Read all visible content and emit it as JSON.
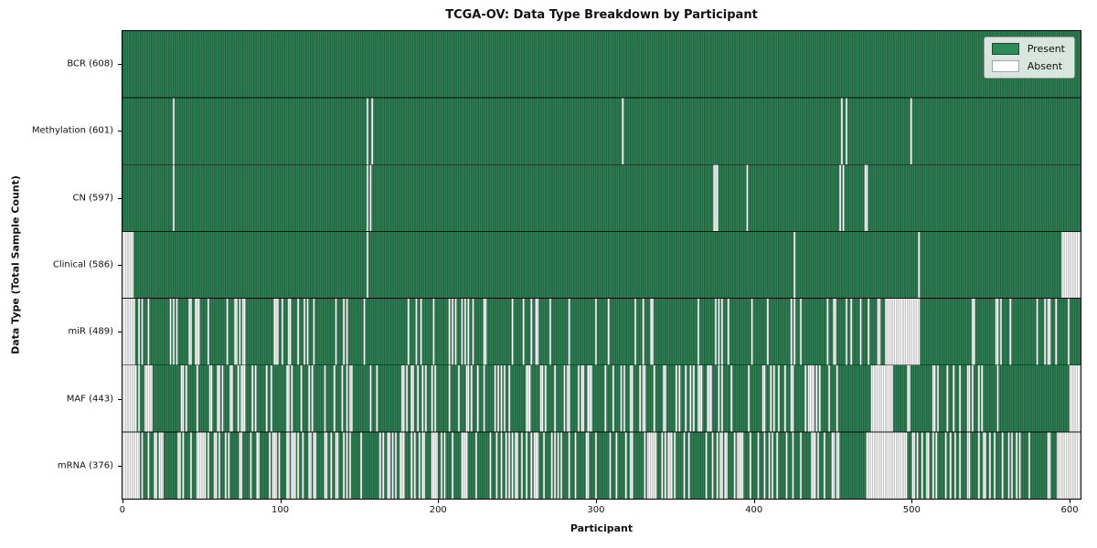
{
  "chart_data": {
    "type": "heatmap",
    "title": "TCGA-OV: Data Type Breakdown by Participant",
    "xlabel": "Participant",
    "ylabel": "Data Type (Total Sample Count)",
    "x_ticks": [
      0,
      100,
      200,
      300,
      400,
      500,
      600
    ],
    "x_range": [
      0,
      608
    ],
    "n_participants": 608,
    "grid": false,
    "legend_position": "upper right",
    "legend_items": [
      {
        "label": "Present",
        "color": "#2e8b57"
      },
      {
        "label": "Absent",
        "color": "#ffffff"
      }
    ],
    "colors": {
      "present": "#318457",
      "present_edge": "#174e31",
      "absent": "#fdfdfd",
      "absent_edge": "#9e9e9e",
      "row_separator": "#000000",
      "axes_edge": "#000000"
    },
    "rows": [
      {
        "label": "BCR",
        "total": 608,
        "display": "BCR (608)",
        "absent_count": 0,
        "absent": [],
        "absent_runs": [],
        "absent_bins": null
      },
      {
        "label": "Methylation",
        "total": 601,
        "display": "Methylation (601)",
        "absent_count": 7,
        "absent": [
          32,
          155,
          158,
          317,
          456,
          459,
          500
        ],
        "absent_runs": [],
        "absent_bins": null
      },
      {
        "label": "CN",
        "total": 597,
        "display": "CN (597)",
        "absent_count": 11,
        "absent": [
          32,
          155,
          157,
          375,
          376,
          377,
          396,
          455,
          457,
          471,
          472
        ],
        "absent_runs": [],
        "absent_bins": null
      },
      {
        "label": "Clinical",
        "total": 586,
        "display": "Clinical (586)",
        "absent_count": 22,
        "absent": [
          0,
          1,
          2,
          3,
          4,
          5,
          6,
          155,
          426,
          505,
          596,
          597,
          598,
          599,
          600,
          601,
          602,
          603,
          604,
          605,
          606,
          607
        ],
        "absent_runs": [],
        "absent_bins": null
      },
      {
        "label": "miR",
        "total": 489,
        "display": "miR (489)",
        "absent_count": 119,
        "absent": [],
        "absent_runs": [
          [
            0,
            7
          ],
          [
            484,
            505
          ]
        ],
        "absent_bins": {
          "size": 38,
          "counts": [
            6,
            10,
            9,
            6,
            4,
            8,
            7,
            3,
            5,
            3,
            4,
            6,
            6,
            0,
            6,
            6
          ]
        }
      },
      {
        "label": "MAF",
        "total": 443,
        "display": "MAF (443)",
        "absent_count": 165,
        "absent": [],
        "absent_runs": [
          [
            0,
            8
          ],
          [
            475,
            488
          ],
          [
            601,
            607
          ]
        ],
        "absent_bins": {
          "size": 38,
          "counts": [
            7,
            12,
            10,
            8,
            8,
            10,
            10,
            12,
            10,
            14,
            8,
            12,
            0,
            8,
            6,
            0
          ]
        }
      },
      {
        "label": "mRNA",
        "total": 376,
        "display": "mRNA (376)",
        "absent_count": 232,
        "absent": [],
        "absent_runs": [
          [
            0,
            9
          ],
          [
            472,
            497
          ],
          [
            596,
            607
          ]
        ],
        "absent_bins": {
          "size": 38,
          "counts": [
            10,
            16,
            14,
            14,
            12,
            14,
            14,
            10,
            12,
            12,
            14,
            12,
            0,
            12,
            12,
            6
          ]
        }
      }
    ]
  }
}
